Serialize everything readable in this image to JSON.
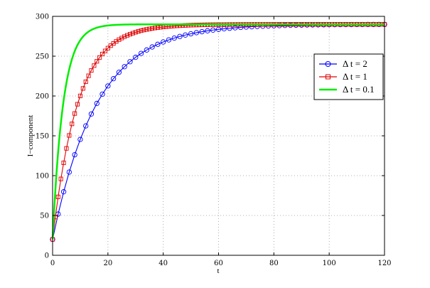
{
  "chart_data": {
    "type": "line",
    "title": "",
    "xlabel": "t",
    "ylabel": "I−component",
    "xlim": [
      0,
      120
    ],
    "ylim": [
      0,
      300
    ],
    "xticks": [
      "0",
      "20",
      "40",
      "60",
      "80",
      "100",
      "120"
    ],
    "yticks": [
      "0",
      "50",
      "100",
      "150",
      "200",
      "250",
      "300"
    ],
    "grid": true,
    "legend_position": "right",
    "model": {
      "initial_value": 20,
      "asymptote": 290
    },
    "series": [
      {
        "name": "Δ t = 2",
        "color": "#0000ff",
        "marker": "circle",
        "x_step": 2,
        "rate_per_unit": 0.0625
      },
      {
        "name": "Δ t = 1",
        "color": "#e00000",
        "marker": "square",
        "x_step": 1,
        "rate_per_unit": 0.11
      },
      {
        "name": "Δ t = 0.1",
        "color": "#00ee00",
        "marker": "none",
        "x_step": 0.1,
        "rate_per_unit": 0.26
      }
    ]
  }
}
